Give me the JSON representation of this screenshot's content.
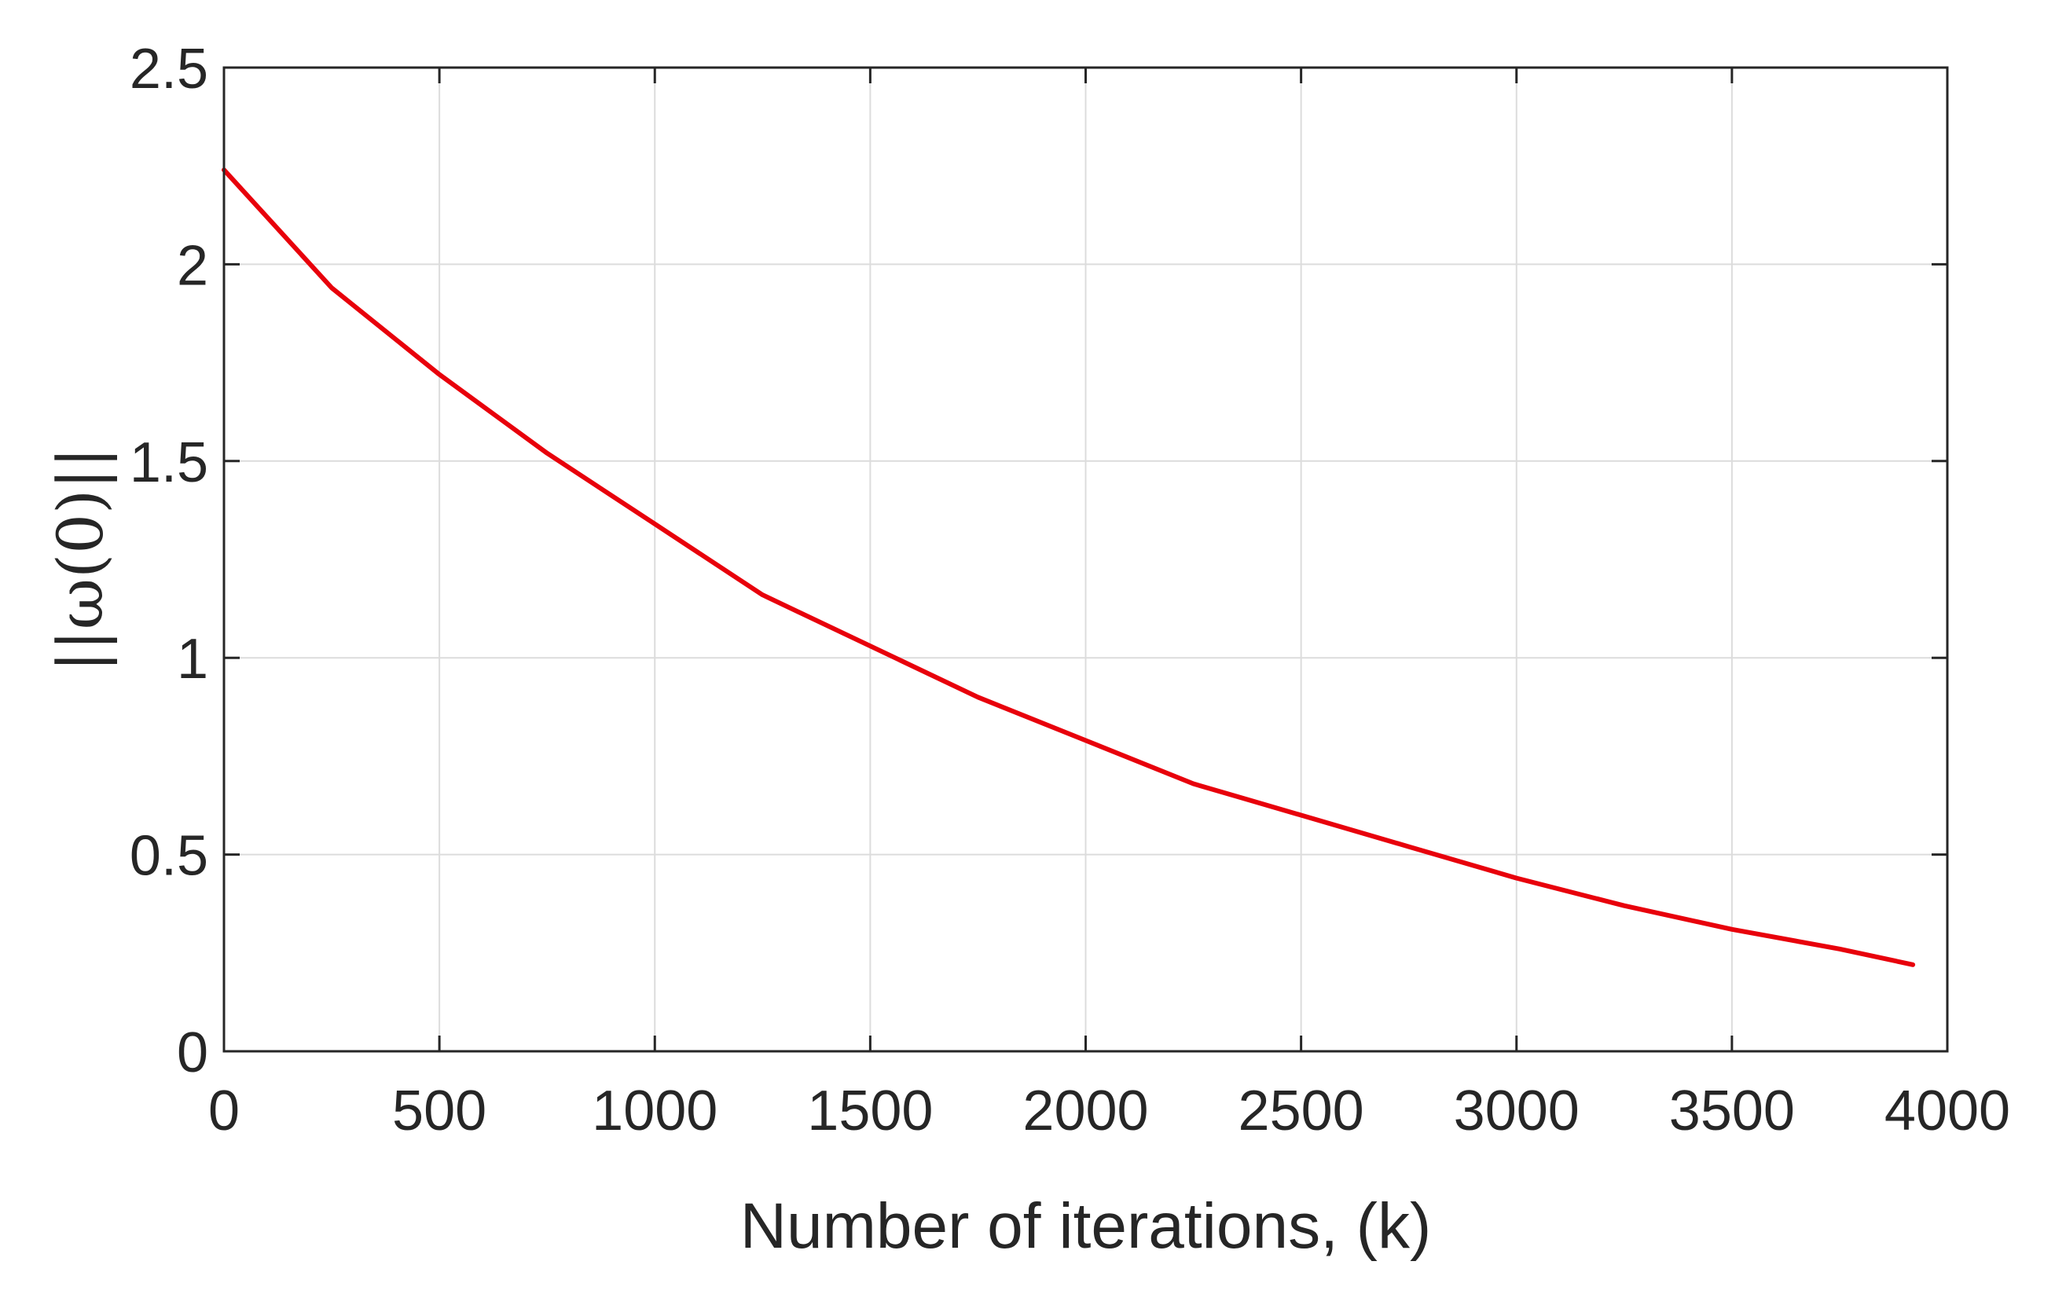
{
  "chart_data": {
    "type": "line",
    "title": "",
    "xlabel": "Number of iterations, (k)",
    "ylabel": "||ω(0)||",
    "xlim": [
      0,
      4000
    ],
    "ylim": [
      0,
      2.5
    ],
    "xticks": [
      0,
      500,
      1000,
      1500,
      2000,
      2500,
      3000,
      3500,
      4000
    ],
    "yticks": [
      0,
      0.5,
      1,
      1.5,
      2,
      2.5
    ],
    "xtick_labels": [
      "0",
      "500",
      "1000",
      "1500",
      "2000",
      "2500",
      "3000",
      "3500",
      "4000"
    ],
    "ytick_labels": [
      "0",
      "0.5",
      "1",
      "1.5",
      "2",
      "2.5"
    ],
    "grid": true,
    "series": [
      {
        "color": "#e8000b",
        "x": [
          0,
          250,
          500,
          750,
          1000,
          1250,
          1500,
          1750,
          2000,
          2250,
          2500,
          2750,
          3000,
          3250,
          3500,
          3750,
          3920
        ],
        "y": [
          2.24,
          1.94,
          1.72,
          1.52,
          1.34,
          1.16,
          1.03,
          0.9,
          0.79,
          0.68,
          0.6,
          0.52,
          0.44,
          0.37,
          0.31,
          0.26,
          0.22
        ]
      }
    ]
  }
}
